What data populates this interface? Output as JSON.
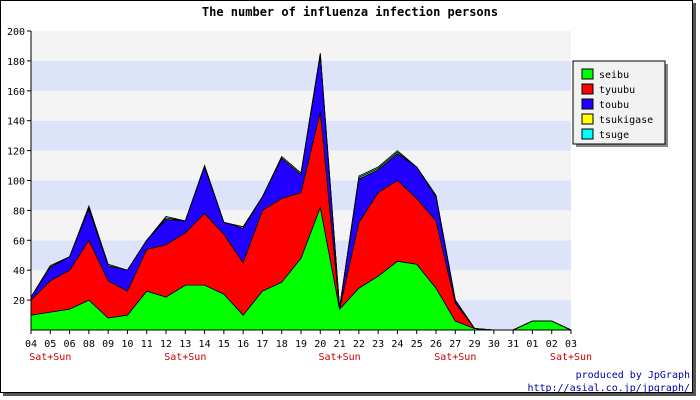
{
  "chart_data": {
    "type": "area",
    "title": "The number of influenza infection persons",
    "categories": [
      "04",
      "05",
      "06",
      "08",
      "09",
      "10",
      "11",
      "12",
      "13",
      "14",
      "15",
      "16",
      "17",
      "18",
      "19",
      "20",
      "21",
      "22",
      "23",
      "24",
      "25",
      "26",
      "27",
      "29",
      "30",
      "31",
      "01",
      "02",
      "03"
    ],
    "weekend_label": "Sat+Sun",
    "weekend_categories": [
      "05",
      "13",
      "21",
      "27",
      "03"
    ],
    "ylim": [
      0,
      200
    ],
    "yticks": [
      20,
      40,
      60,
      80,
      100,
      120,
      140,
      160,
      180,
      200
    ],
    "stacked": true,
    "grid": true,
    "legend_position": "top-right",
    "series": [
      {
        "name": "seibu",
        "color": "#00ff00",
        "values": [
          10,
          12,
          14,
          20,
          8,
          10,
          26,
          22,
          30,
          30,
          24,
          10,
          26,
          32,
          48,
          82,
          14,
          28,
          36,
          46,
          44,
          28,
          6,
          1,
          0,
          0,
          6,
          6,
          0
        ]
      },
      {
        "name": "tyuubu",
        "color": "#ff0000",
        "values": [
          10,
          21,
          26,
          40,
          25,
          16,
          28,
          35,
          35,
          48,
          40,
          35,
          54,
          56,
          44,
          64,
          0,
          44,
          56,
          54,
          44,
          45,
          12,
          0,
          0,
          0,
          0,
          0,
          0
        ]
      },
      {
        "name": "toubu",
        "color": "#2200ff",
        "values": [
          2,
          9,
          9,
          21,
          10,
          14,
          6,
          17,
          8,
          31,
          8,
          23,
          9,
          27,
          12,
          38,
          1,
          29,
          15,
          18,
          21,
          16,
          2,
          0,
          0,
          0,
          0,
          0,
          0
        ]
      },
      {
        "name": "tsukigase",
        "color": "#ffff00",
        "values": [
          0,
          1,
          0,
          1,
          1,
          0,
          0,
          1,
          0,
          1,
          0,
          1,
          0,
          1,
          1,
          1,
          0,
          1,
          1,
          1,
          0,
          1,
          0,
          0,
          0,
          0,
          0,
          0,
          0
        ]
      },
      {
        "name": "tsuge",
        "color": "#00ffff",
        "values": [
          0,
          0,
          0,
          1,
          0,
          0,
          0,
          1,
          0,
          0,
          0,
          0,
          0,
          0,
          0,
          0,
          0,
          1,
          1,
          1,
          0,
          0,
          0,
          0,
          0,
          0,
          0,
          0,
          0
        ]
      }
    ]
  },
  "credits": {
    "line1": "produced by JpGraph",
    "line2": "http://asial.co.jp/jpgraph/"
  }
}
